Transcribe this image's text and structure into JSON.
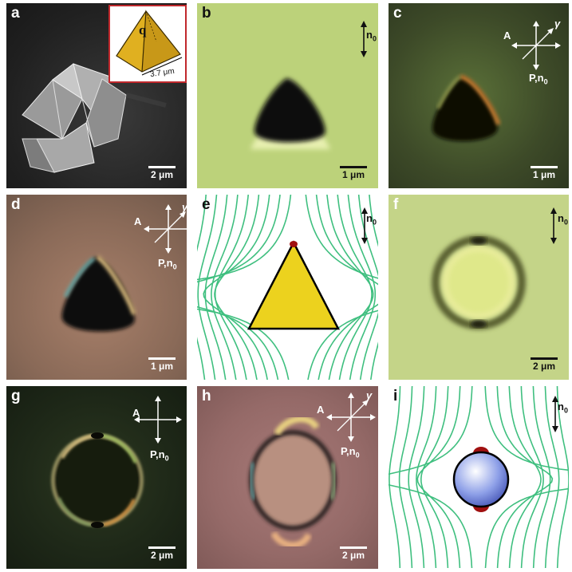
{
  "panels": {
    "a": {
      "label": "a",
      "scale": "2 μm",
      "inset_symbol": "q",
      "inset_dimension": "3.7 μm"
    },
    "b": {
      "label": "b",
      "scale": "1 μm",
      "director": "n",
      "director_sub": "0"
    },
    "c": {
      "label": "c",
      "scale": "1 μm",
      "analyzer": "A",
      "gamma": "γ",
      "polarizer": "P,n",
      "polarizer_sub": "0"
    },
    "d": {
      "label": "d",
      "scale": "1 μm",
      "analyzer": "A",
      "gamma": "γ",
      "polarizer": "P,n",
      "polarizer_sub": "0"
    },
    "e": {
      "label": "e",
      "director": "n",
      "director_sub": "0"
    },
    "f": {
      "label": "f",
      "scale": "2 μm",
      "director": "n",
      "director_sub": "0"
    },
    "g": {
      "label": "g",
      "scale": "2 μm",
      "analyzer": "A",
      "polarizer": "P,n",
      "polarizer_sub": "0"
    },
    "h": {
      "label": "h",
      "scale": "2 μm",
      "analyzer": "A",
      "gamma": "γ",
      "polarizer": "P,n",
      "polarizer_sub": "0"
    },
    "i": {
      "label": "i",
      "director": "n",
      "director_sub": "0"
    }
  },
  "colors": {
    "liquid_crystal_green": "#bcd27a",
    "polarized_dark_green": "#3d4a30",
    "polarized_magenta": "#a07868",
    "field_line_green": "#3fbf7f",
    "pyramid_gold": "#e8c820",
    "defect_red": "#a01010",
    "sphere_blue": "#7a8fe0",
    "inset_border": "#c0282c"
  }
}
